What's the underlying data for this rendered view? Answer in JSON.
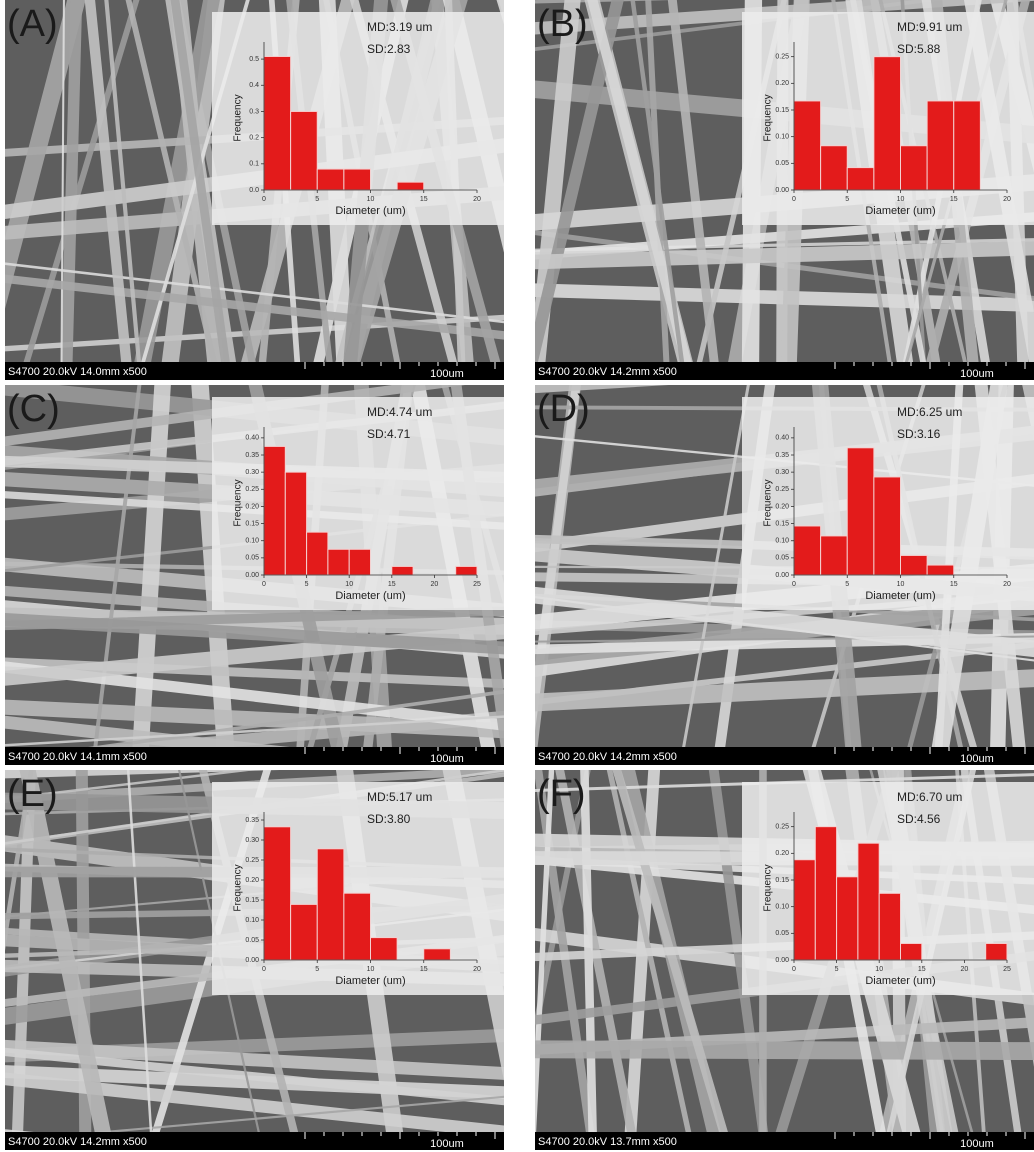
{
  "panels": [
    {
      "label": "(A)",
      "footer": "S4700 20.0kV 14.0mm x500",
      "scale": "100um"
    },
    {
      "label": "(B)",
      "footer": "S4700 20.0kV 14.2mm x500",
      "scale": "100um"
    },
    {
      "label": "(C)",
      "footer": "S4700 20.0kV 14.1mm x500",
      "scale": "100um"
    },
    {
      "label": "(D)",
      "footer": "S4700 20.0kV 14.2mm x500",
      "scale": "100um"
    },
    {
      "label": "(E)",
      "footer": "S4700 20.0kV 14.2mm x500",
      "scale": "100um"
    },
    {
      "label": "(F)",
      "footer": "S4700 20.0kV 13.7mm x500",
      "scale": "100um"
    }
  ],
  "chart_data": [
    {
      "type": "histogram",
      "x_label": "Diameter (um)",
      "y_label": "Frequency",
      "annotations": [
        "MD:3.19 um",
        "SD:2.83"
      ],
      "color": "#e31b1b",
      "bins": [
        0,
        2.5,
        5,
        7.5,
        10,
        12.5,
        15
      ],
      "values": [
        0.51,
        0.3,
        0.08,
        0.08,
        0,
        0.03
      ],
      "xlim": [
        0,
        20
      ],
      "xticks": [
        0,
        5,
        10,
        15,
        20
      ],
      "ylim": [
        0,
        0.55
      ],
      "yticks": [
        {
          "value": 0,
          "label": "0.0"
        },
        0.1,
        0.2,
        0.3,
        0.4,
        0.5
      ]
    },
    {
      "type": "histogram",
      "x_label": "Diameter (um)",
      "y_label": "Frequency",
      "annotations": [
        "MD:9.91 um",
        "SD:5.88"
      ],
      "color": "#e31b1b",
      "bins": [
        0,
        2.5,
        5,
        7.5,
        10,
        12.5,
        15,
        17.5
      ],
      "values": [
        0.167,
        0.083,
        0.042,
        0.25,
        0.083,
        0.167,
        0.167
      ],
      "xlim": [
        0,
        20
      ],
      "xticks": [
        0,
        5,
        10,
        15,
        20
      ],
      "ylim": [
        0,
        0.27
      ],
      "yticks": [
        {
          "value": 0,
          "label": "0.00"
        },
        0.05,
        {
          "value": 0.1,
          "label": "0.10"
        },
        0.15,
        {
          "value": 0.2,
          "label": "0.20"
        },
        0.25
      ]
    },
    {
      "type": "histogram",
      "x_label": "Diameter (um)",
      "y_label": "Frequency",
      "annotations": [
        "MD:4.74 um",
        "SD:4.71"
      ],
      "color": "#e31b1b",
      "bins": [
        0,
        2.5,
        5,
        7.5,
        10,
        12.5,
        15,
        17.5,
        20,
        22.5,
        25
      ],
      "values": [
        0.375,
        0.3,
        0.125,
        0.075,
        0.075,
        0,
        0.025,
        0,
        0,
        0.025
      ],
      "xlim": [
        0,
        25
      ],
      "xticks": [
        0,
        5,
        10,
        15,
        20,
        25
      ],
      "ylim": [
        0,
        0.42
      ],
      "yticks": [
        {
          "value": 0,
          "label": "0.00"
        },
        0.05,
        {
          "value": 0.1,
          "label": "0.10"
        },
        0.15,
        {
          "value": 0.2,
          "label": "0.20"
        },
        0.25,
        {
          "value": 0.3,
          "label": "0.30"
        },
        0.35,
        {
          "value": 0.4,
          "label": "0.40"
        }
      ]
    },
    {
      "type": "histogram",
      "x_label": "Diameter (um)",
      "y_label": "Frequency",
      "annotations": [
        "MD:6.25 um",
        "SD:3.16"
      ],
      "color": "#e31b1b",
      "bins": [
        0,
        2.5,
        5,
        7.5,
        10,
        12.5,
        15
      ],
      "values": [
        0.143,
        0.114,
        0.371,
        0.286,
        0.057,
        0.029
      ],
      "xlim": [
        0,
        20
      ],
      "xticks": [
        0,
        5,
        10,
        15,
        20
      ],
      "ylim": [
        0,
        0.42
      ],
      "yticks": [
        {
          "value": 0,
          "label": "0.00"
        },
        0.05,
        {
          "value": 0.1,
          "label": "0.10"
        },
        0.15,
        {
          "value": 0.2,
          "label": "0.20"
        },
        0.25,
        {
          "value": 0.3,
          "label": "0.30"
        },
        0.35,
        {
          "value": 0.4,
          "label": "0.40"
        }
      ]
    },
    {
      "type": "histogram",
      "x_label": "Diameter (um)",
      "y_label": "Frequency",
      "annotations": [
        "MD:5.17 um",
        "SD:3.80"
      ],
      "color": "#e31b1b",
      "bins": [
        0,
        2.5,
        5,
        7.5,
        10,
        12.5,
        15,
        17.5
      ],
      "values": [
        0.333,
        0.139,
        0.278,
        0.167,
        0.056,
        0,
        0.028
      ],
      "xlim": [
        0,
        20
      ],
      "xticks": [
        0,
        5,
        10,
        15,
        20
      ],
      "ylim": [
        0,
        0.36
      ],
      "yticks": [
        {
          "value": 0,
          "label": "0.00"
        },
        0.05,
        {
          "value": 0.1,
          "label": "0.10"
        },
        0.15,
        {
          "value": 0.2,
          "label": "0.20"
        },
        0.25,
        {
          "value": 0.3,
          "label": "0.30"
        },
        0.35
      ]
    },
    {
      "type": "histogram",
      "x_label": "Diameter (um)",
      "y_label": "Frequency",
      "annotations": [
        "MD:6.70 um",
        "SD:4.56"
      ],
      "color": "#e31b1b",
      "bins": [
        0,
        2.5,
        5,
        7.5,
        10,
        12.5,
        15,
        17.5,
        20,
        22.5,
        25
      ],
      "values": [
        0.188,
        0.25,
        0.156,
        0.219,
        0.125,
        0.031,
        0,
        0,
        0,
        0.031
      ],
      "xlim": [
        0,
        25
      ],
      "xticks": [
        0,
        5,
        10,
        15,
        20,
        25
      ],
      "ylim": [
        0,
        0.27
      ],
      "yticks": [
        {
          "value": 0,
          "label": "0.00"
        },
        0.05,
        {
          "value": 0.1,
          "label": "0.10"
        },
        0.15,
        {
          "value": 0.2,
          "label": "0.20"
        },
        0.25
      ]
    }
  ]
}
